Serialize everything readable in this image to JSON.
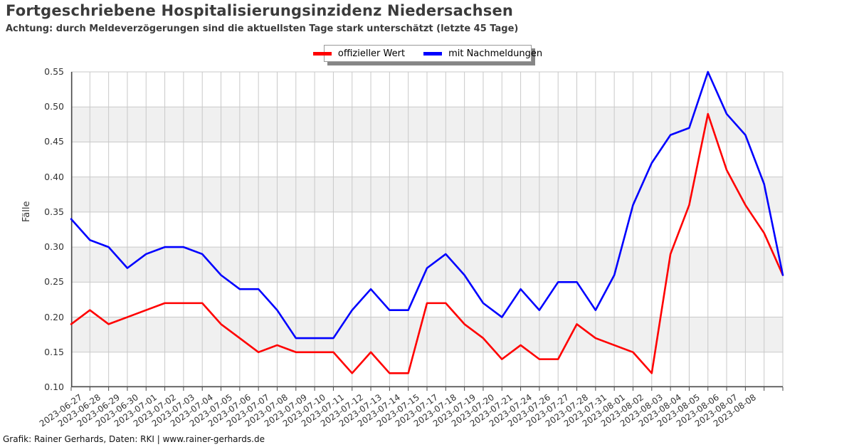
{
  "header": {
    "title": "Fortgeschriebene Hospitalisierungsinzidenz Niedersachsen",
    "subtitle": "Achtung: durch Meldeverzögerungen sind die aktuellsten Tage stark unterschätzt (letzte 45 Tage)"
  },
  "legend": {
    "items": [
      {
        "label": "offizieller Wert",
        "color": "#ff0000"
      },
      {
        "label": "mit Nachmeldungen",
        "color": "#0000ff"
      }
    ]
  },
  "footer": {
    "credit": "Grafik: Rainer Gerhards, Daten: RKI | www.rainer-gerhards.de"
  },
  "chart_data": {
    "type": "line",
    "title": "Fortgeschriebene Hospitalisierungsinzidenz Niedersachsen",
    "subtitle": "Achtung: durch Meldeverzögerungen sind die aktuellsten Tage stark unterschätzt (letzte 45 Tage)",
    "xlabel": "",
    "ylabel": "Fälle",
    "ylim": [
      0.1,
      0.55
    ],
    "ytick_step": 0.05,
    "ytick_labels": [
      "0.10",
      "0.15",
      "0.20",
      "0.25",
      "0.30",
      "0.35",
      "0.40",
      "0.45",
      "0.50",
      "0.55"
    ],
    "grid": true,
    "band_color": "#f0f0f0",
    "grid_color": "#c9c9c9",
    "axis_color": "#4a4a4a",
    "legend_position": "top-center",
    "categories": [
      "2023-06-27",
      "2023-06-28",
      "2023-06-29",
      "2023-06-30",
      "2023-07-01",
      "2023-07-02",
      "2023-07-03",
      "2023-07-04",
      "2023-07-05",
      "2023-07-06",
      "2023-07-07",
      "2023-07-08",
      "2023-07-09",
      "2023-07-10",
      "2023-07-11",
      "2023-07-12",
      "2023-07-13",
      "2023-07-14",
      "2023-07-15",
      "2023-07-17",
      "2023-07-18",
      "2023-07-19",
      "2023-07-20",
      "2023-07-21",
      "2023-07-24",
      "2023-07-26",
      "2023-07-27",
      "2023-07-28",
      "2023-07-31",
      "2023-08-01",
      "2023-08-02",
      "2023-08-03",
      "2023-08-04",
      "2023-08-05",
      "2023-08-06",
      "2023-08-07",
      "2023-08-08",
      "",
      ""
    ],
    "series": [
      {
        "name": "offizieller Wert",
        "color": "#ff0000",
        "values": [
          0.19,
          0.21,
          0.19,
          0.2,
          0.21,
          0.22,
          0.22,
          0.22,
          0.19,
          0.17,
          0.15,
          0.16,
          0.15,
          0.15,
          0.15,
          0.12,
          0.15,
          0.12,
          0.12,
          0.22,
          0.22,
          0.19,
          0.17,
          0.14,
          0.16,
          0.14,
          0.14,
          0.19,
          0.17,
          0.16,
          0.15,
          0.12,
          0.29,
          0.36,
          0.49,
          0.41,
          0.36,
          0.32,
          0.26
        ]
      },
      {
        "name": "mit Nachmeldungen",
        "color": "#0000ff",
        "values": [
          0.34,
          0.31,
          0.3,
          0.27,
          0.29,
          0.3,
          0.3,
          0.29,
          0.26,
          0.24,
          0.24,
          0.21,
          0.17,
          0.17,
          0.17,
          0.21,
          0.24,
          0.21,
          0.21,
          0.27,
          0.29,
          0.26,
          0.22,
          0.2,
          0.24,
          0.21,
          0.25,
          0.25,
          0.21,
          0.26,
          0.36,
          0.42,
          0.46,
          0.47,
          0.55,
          0.49,
          0.46,
          0.39,
          0.26
        ]
      }
    ]
  }
}
